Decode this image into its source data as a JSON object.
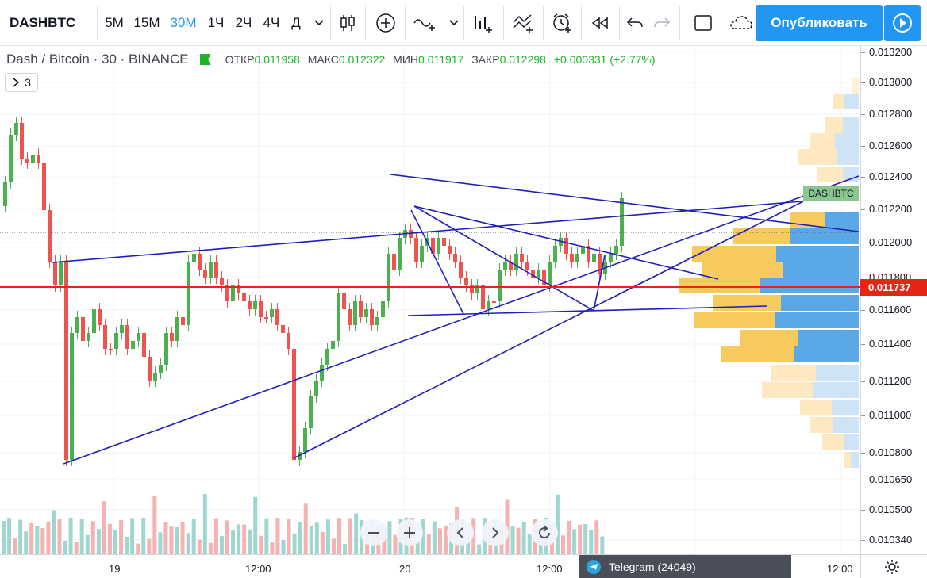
{
  "toolbar": {
    "symbol": "DASHBTC",
    "intervals": [
      "5M",
      "15M",
      "30M",
      "1Ч",
      "2Ч",
      "4Ч",
      "Д"
    ],
    "active_interval": "30M",
    "publish_label": "Опубликовать"
  },
  "legend": {
    "title": "Dash / Bitcoin · 30 · BINANCE",
    "open_label": "ОТКР",
    "open": "0.011958",
    "high_label": "МАКС",
    "high": "0.012322",
    "low_label": "МИН",
    "low": "0.011917",
    "close_label": "ЗАКР",
    "close": "0.012298",
    "change": "+0.000331 (+2.77%)",
    "collapse_count": "3"
  },
  "price_axis": {
    "ticks": [
      "0.013200",
      "0.013000",
      "0.012800",
      "0.012600",
      "0.012400",
      "0.012200",
      "0.012000",
      "0.011800",
      "0.011600",
      "0.011400",
      "0.011200",
      "0.011000",
      "0.010800",
      "0.010650",
      "0.010500",
      "0.010340"
    ],
    "current_price": "0.011737"
  },
  "time_axis": {
    "labels": [
      "19",
      "12:00",
      "20",
      "12:00",
      "12:00"
    ]
  },
  "series_label": "DASHBTC",
  "telegram": "Telegram (24049)",
  "colors": {
    "up": "#4caf50",
    "down": "#ef5350",
    "lines": "#1f1fb8",
    "price_line": "#e52617",
    "accent": "#2196f3"
  }
}
